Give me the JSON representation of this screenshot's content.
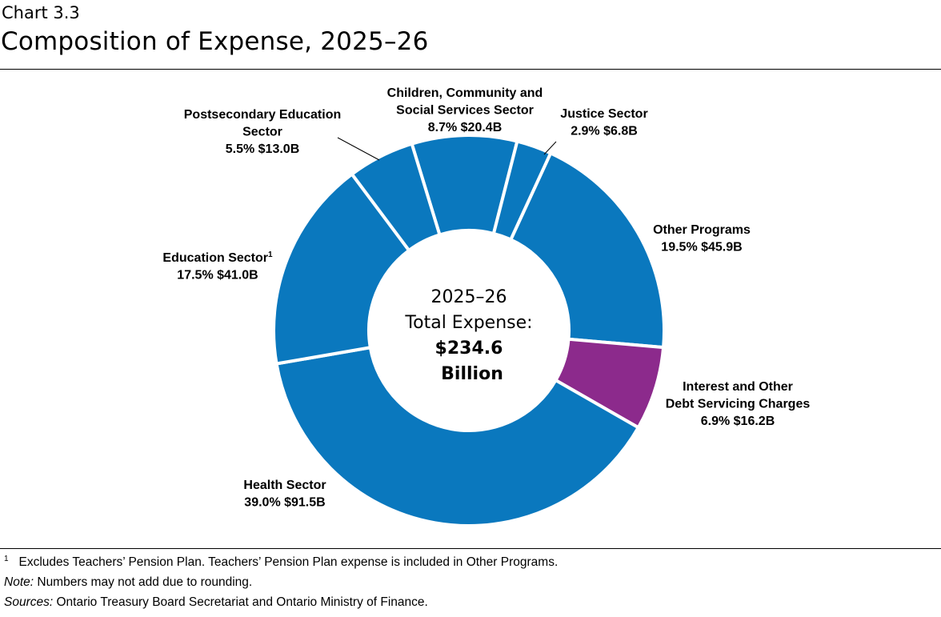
{
  "header": {
    "chart_number": "Chart 3.3",
    "title": "Composition of Expense, 2025–26"
  },
  "chart_data": {
    "type": "pie",
    "variant": "donut",
    "title": "Composition of Expense, 2025–26",
    "center_label": [
      "2025–26",
      "Total Expense:",
      "$234.6",
      "Billion"
    ],
    "unit": "$ billions",
    "slices": [
      {
        "label": "Children, Community and Social Services Sector",
        "label_lines": [
          "Children, Community and",
          "Social Services Sector",
          "8.7%  $20.4B"
        ],
        "percent": 8.7,
        "value": 20.4,
        "color": "#0a78be"
      },
      {
        "label": "Justice Sector",
        "label_lines": [
          "Justice Sector",
          "2.9%  $6.8B"
        ],
        "percent": 2.9,
        "value": 6.8,
        "color": "#0a78be"
      },
      {
        "label": "Other Programs",
        "label_lines": [
          "Other Programs",
          "19.5%  $45.9B"
        ],
        "percent": 19.5,
        "value": 45.9,
        "color": "#0a78be"
      },
      {
        "label": "Interest and Other Debt Servicing Charges",
        "label_lines": [
          "Interest and Other",
          "Debt Servicing Charges",
          "6.9%  $16.2B"
        ],
        "percent": 6.9,
        "value": 16.2,
        "color": "#8c2a8c"
      },
      {
        "label": "Health Sector",
        "label_lines": [
          "Health Sector",
          "39.0%  $91.5B"
        ],
        "percent": 39.0,
        "value": 91.5,
        "color": "#0a78be"
      },
      {
        "label": "Education Sector",
        "label_lines": [
          "Education Sector",
          "17.5%  $41.0B"
        ],
        "footnote_mark": "1",
        "percent": 17.5,
        "value": 41.0,
        "color": "#0a78be"
      },
      {
        "label": "Postsecondary Education Sector",
        "label_lines": [
          "Postsecondary Education",
          "Sector",
          "5.5%  $13.0B"
        ],
        "percent": 5.5,
        "value": 13.0,
        "color": "#0a78be"
      }
    ]
  },
  "footnotes": {
    "fn1_mark": "1",
    "fn1": "Excludes Teachers’ Pension Plan. Teachers’ Pension Plan expense is included in Other Programs.",
    "note_label": "Note:",
    "note": " Numbers may not add due to rounding.",
    "sources_label": "Sources:",
    "sources": " Ontario Treasury Board Secretariat and Ontario Ministry of Finance."
  }
}
